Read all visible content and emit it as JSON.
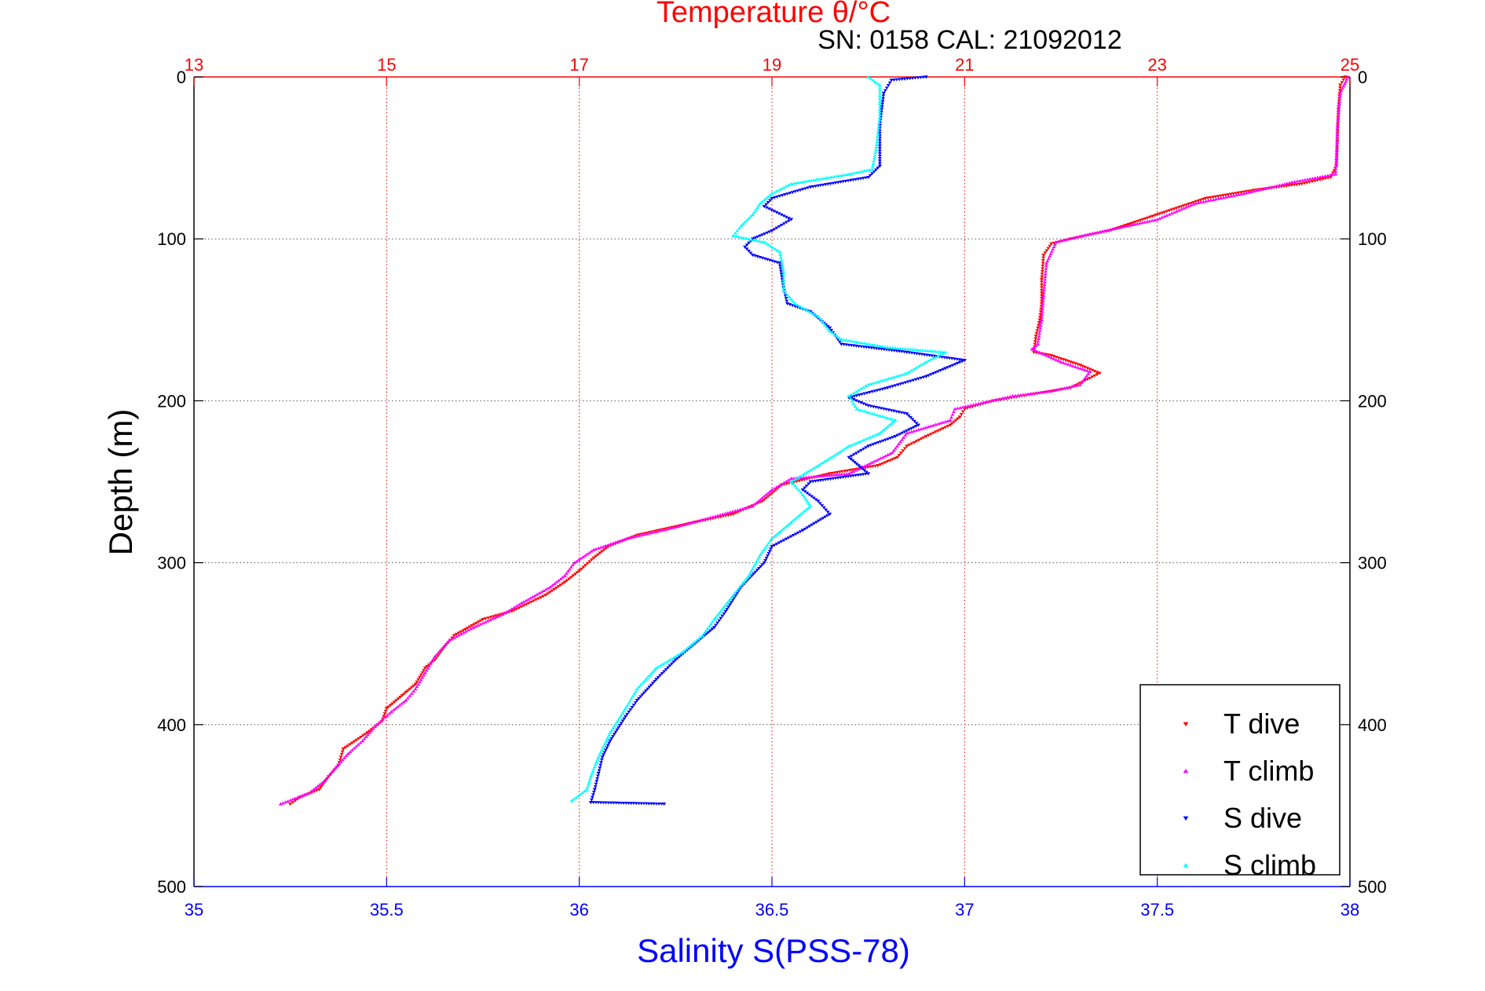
{
  "chart_data": {
    "type": "scatter",
    "title": "Temperature θ/°C",
    "subtitle": "SN: 0158  CAL: 21092012",
    "xlabel": "Salinity S(PSS-78)",
    "ylabel": "Depth (m)",
    "colors": {
      "temp_axis": "#ff0000",
      "sal_axis": "#0000ff",
      "t_dive": "#ff0000",
      "t_climb": "#ff00ff",
      "s_dive": "#0000ff",
      "s_climb": "#00ffff"
    },
    "x_temp": {
      "lim": [
        13,
        25
      ],
      "ticks": [
        "13",
        "15",
        "17",
        "19",
        "21",
        "23",
        "25"
      ],
      "grid": true
    },
    "x_sal": {
      "lim": [
        35,
        38
      ],
      "ticks": [
        "35",
        "35.5",
        "36",
        "36.5",
        "37",
        "37.5",
        "38"
      ],
      "grid": false
    },
    "y": {
      "lim": [
        0,
        500
      ],
      "reversed": true,
      "ticks_left": [
        "0",
        "100",
        "200",
        "300",
        "400",
        "500"
      ],
      "ticks_right": [
        "0",
        "100",
        "200",
        "300",
        "400",
        "500"
      ],
      "grid": true
    },
    "legend": {
      "placement": "bottom-right",
      "entries": [
        "T dive",
        "T climb",
        "S dive",
        "S climb"
      ]
    },
    "series": [
      {
        "name": "T dive",
        "axis": "temperature",
        "marker": "down-triangle",
        "points": [
          [
            24.95,
            0
          ],
          [
            24.9,
            5
          ],
          [
            24.88,
            20
          ],
          [
            24.87,
            40
          ],
          [
            24.86,
            55
          ],
          [
            24.8,
            62
          ],
          [
            24.5,
            66
          ],
          [
            24.0,
            70
          ],
          [
            23.5,
            75
          ],
          [
            23.0,
            85
          ],
          [
            22.5,
            95
          ],
          [
            22.1,
            100
          ],
          [
            21.9,
            103
          ],
          [
            21.82,
            110
          ],
          [
            21.8,
            125
          ],
          [
            21.8,
            140
          ],
          [
            21.78,
            150
          ],
          [
            21.74,
            160
          ],
          [
            21.72,
            170
          ],
          [
            21.9,
            172
          ],
          [
            22.2,
            178
          ],
          [
            22.4,
            183
          ],
          [
            22.1,
            192
          ],
          [
            21.7,
            196
          ],
          [
            21.3,
            200
          ],
          [
            21.0,
            205
          ],
          [
            20.95,
            210
          ],
          [
            20.85,
            215
          ],
          [
            20.6,
            222
          ],
          [
            20.4,
            228
          ],
          [
            20.3,
            235
          ],
          [
            20.1,
            240
          ],
          [
            19.6,
            245
          ],
          [
            19.1,
            252
          ],
          [
            18.9,
            262
          ],
          [
            18.6,
            270
          ],
          [
            18.2,
            275
          ],
          [
            17.6,
            283
          ],
          [
            17.3,
            290
          ],
          [
            17.15,
            297
          ],
          [
            17.0,
            305
          ],
          [
            16.85,
            312
          ],
          [
            16.65,
            320
          ],
          [
            16.3,
            330
          ],
          [
            16.0,
            335
          ],
          [
            15.7,
            345
          ],
          [
            15.6,
            352
          ],
          [
            15.5,
            360
          ],
          [
            15.4,
            365
          ],
          [
            15.3,
            375
          ],
          [
            15.2,
            380
          ],
          [
            15.0,
            390
          ],
          [
            14.95,
            398
          ],
          [
            14.8,
            405
          ],
          [
            14.55,
            415
          ],
          [
            14.5,
            425
          ],
          [
            14.4,
            432
          ],
          [
            14.3,
            440
          ],
          [
            14.1,
            445
          ],
          [
            14.0,
            449
          ]
        ]
      },
      {
        "name": "T climb",
        "axis": "temperature",
        "marker": "up-triangle",
        "points": [
          [
            24.98,
            0
          ],
          [
            24.9,
            10
          ],
          [
            24.87,
            30
          ],
          [
            24.86,
            50
          ],
          [
            24.85,
            60
          ],
          [
            24.4,
            65
          ],
          [
            23.9,
            72
          ],
          [
            23.4,
            78
          ],
          [
            23.0,
            88
          ],
          [
            22.3,
            97
          ],
          [
            21.95,
            102
          ],
          [
            21.85,
            115
          ],
          [
            21.82,
            135
          ],
          [
            21.8,
            150
          ],
          [
            21.76,
            165
          ],
          [
            21.7,
            168
          ],
          [
            22.0,
            176
          ],
          [
            22.3,
            182
          ],
          [
            22.2,
            190
          ],
          [
            21.9,
            194
          ],
          [
            21.5,
            197
          ],
          [
            21.2,
            201
          ],
          [
            20.9,
            205
          ],
          [
            20.85,
            212
          ],
          [
            20.4,
            220
          ],
          [
            20.25,
            232
          ],
          [
            19.8,
            245
          ],
          [
            19.2,
            248
          ],
          [
            19.0,
            255
          ],
          [
            18.8,
            265
          ],
          [
            18.0,
            278
          ],
          [
            17.5,
            285
          ],
          [
            17.15,
            292
          ],
          [
            16.95,
            300
          ],
          [
            16.85,
            308
          ],
          [
            16.7,
            315
          ],
          [
            16.4,
            325
          ],
          [
            16.2,
            332
          ],
          [
            15.9,
            340
          ],
          [
            15.65,
            348
          ],
          [
            15.5,
            358
          ],
          [
            15.4,
            368
          ],
          [
            15.3,
            378
          ],
          [
            15.2,
            385
          ],
          [
            15.05,
            392
          ],
          [
            14.9,
            400
          ],
          [
            14.75,
            410
          ],
          [
            14.6,
            418
          ],
          [
            14.45,
            428
          ],
          [
            14.35,
            435
          ],
          [
            14.2,
            442
          ],
          [
            13.9,
            449
          ]
        ]
      },
      {
        "name": "S dive",
        "axis": "salinity",
        "marker": "down-triangle",
        "points": [
          [
            36.9,
            0
          ],
          [
            36.81,
            2
          ],
          [
            36.79,
            10
          ],
          [
            36.78,
            30
          ],
          [
            36.78,
            55
          ],
          [
            36.75,
            62
          ],
          [
            36.6,
            68
          ],
          [
            36.5,
            75
          ],
          [
            36.48,
            80
          ],
          [
            36.55,
            88
          ],
          [
            36.5,
            95
          ],
          [
            36.45,
            100
          ],
          [
            36.43,
            105
          ],
          [
            36.45,
            110
          ],
          [
            36.52,
            115
          ],
          [
            36.53,
            130
          ],
          [
            36.54,
            140
          ],
          [
            36.6,
            145
          ],
          [
            36.65,
            155
          ],
          [
            36.68,
            165
          ],
          [
            36.85,
            170
          ],
          [
            37.0,
            175
          ],
          [
            36.95,
            180
          ],
          [
            36.9,
            185
          ],
          [
            36.8,
            192
          ],
          [
            36.7,
            198
          ],
          [
            36.75,
            203
          ],
          [
            36.85,
            208
          ],
          [
            36.88,
            215
          ],
          [
            36.82,
            222
          ],
          [
            36.75,
            228
          ],
          [
            36.7,
            235
          ],
          [
            36.75,
            245
          ],
          [
            36.6,
            250
          ],
          [
            36.58,
            255
          ],
          [
            36.62,
            262
          ],
          [
            36.65,
            270
          ],
          [
            36.58,
            280
          ],
          [
            36.5,
            290
          ],
          [
            36.48,
            300
          ],
          [
            36.42,
            315
          ],
          [
            36.38,
            330
          ],
          [
            36.35,
            340
          ],
          [
            36.3,
            350
          ],
          [
            36.25,
            360
          ],
          [
            36.2,
            372
          ],
          [
            36.15,
            385
          ],
          [
            36.12,
            395
          ],
          [
            36.08,
            410
          ],
          [
            36.06,
            420
          ],
          [
            36.05,
            430
          ],
          [
            36.04,
            440
          ],
          [
            36.03,
            448
          ],
          [
            36.22,
            449
          ]
        ]
      },
      {
        "name": "S climb",
        "axis": "salinity",
        "marker": "up-triangle",
        "points": [
          [
            36.75,
            0
          ],
          [
            36.78,
            5
          ],
          [
            36.78,
            25
          ],
          [
            36.77,
            45
          ],
          [
            36.76,
            57
          ],
          [
            36.7,
            60
          ],
          [
            36.55,
            66
          ],
          [
            36.5,
            72
          ],
          [
            36.47,
            78
          ],
          [
            36.45,
            85
          ],
          [
            36.42,
            92
          ],
          [
            36.4,
            98
          ],
          [
            36.48,
            102
          ],
          [
            36.52,
            108
          ],
          [
            36.53,
            120
          ],
          [
            36.53,
            132
          ],
          [
            36.56,
            140
          ],
          [
            36.62,
            148
          ],
          [
            36.65,
            157
          ],
          [
            36.68,
            162
          ],
          [
            36.8,
            167
          ],
          [
            36.95,
            170
          ],
          [
            36.9,
            176
          ],
          [
            36.85,
            183
          ],
          [
            36.75,
            190
          ],
          [
            36.7,
            197
          ],
          [
            36.72,
            205
          ],
          [
            36.82,
            212
          ],
          [
            36.78,
            220
          ],
          [
            36.7,
            228
          ],
          [
            36.62,
            240
          ],
          [
            36.55,
            250
          ],
          [
            36.58,
            258
          ],
          [
            36.6,
            265
          ],
          [
            36.55,
            275
          ],
          [
            36.5,
            285
          ],
          [
            36.47,
            295
          ],
          [
            36.44,
            308
          ],
          [
            36.4,
            320
          ],
          [
            36.35,
            335
          ],
          [
            36.32,
            345
          ],
          [
            36.27,
            355
          ],
          [
            36.2,
            365
          ],
          [
            36.15,
            378
          ],
          [
            36.12,
            390
          ],
          [
            36.08,
            405
          ],
          [
            36.05,
            420
          ],
          [
            36.03,
            432
          ],
          [
            36.02,
            440
          ],
          [
            35.98,
            447
          ]
        ]
      }
    ]
  }
}
